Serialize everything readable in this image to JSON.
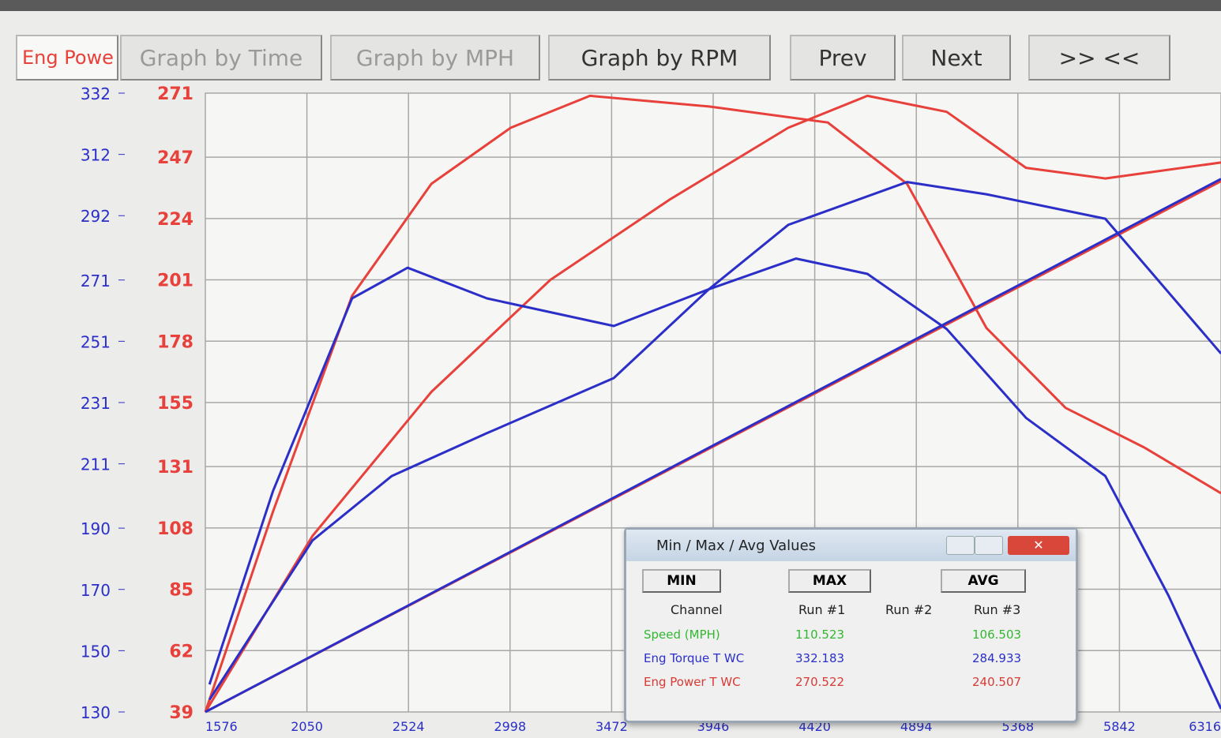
{
  "toolbar": {
    "tabs": [
      "Eng Powe",
      "Graph by Time",
      "Graph by MPH",
      "Graph by RPM",
      "Prev",
      "Next",
      ">> <<"
    ]
  },
  "chart_data": {
    "type": "line",
    "xlim": [
      1576,
      6316
    ],
    "xticks": [
      1576,
      2050,
      2524,
      2998,
      3472,
      3946,
      4420,
      4894,
      5368,
      5842,
      6316
    ],
    "ylim": [
      39,
      271
    ],
    "yticks": [
      39,
      62,
      85,
      108,
      131,
      155,
      178,
      201,
      224,
      247,
      271
    ],
    "y2lim": [
      130,
      332
    ],
    "y2ticks": [
      130,
      150,
      170,
      190,
      211,
      231,
      251,
      271,
      292,
      312,
      332
    ],
    "grid": true,
    "series": [
      {
        "color": "#e8403a",
        "x": [
          1576,
          1891,
          2261,
          2631,
          3001,
          3371,
          3926,
          4481,
          4851,
          5221,
          5591,
          5961,
          6316
        ],
        "values": [
          39,
          114,
          195,
          237,
          258,
          270,
          266,
          260,
          237,
          183,
          153,
          138,
          121
        ]
      },
      {
        "color": "#e8403a",
        "x": [
          1576,
          2076,
          2631,
          3186,
          3741,
          4296,
          4666,
          5036,
          5406,
          5776,
          6316
        ],
        "values": [
          39,
          105,
          159,
          201,
          231,
          258,
          270,
          264,
          243,
          239,
          245
        ]
      },
      {
        "color": "#e8403a",
        "x": [
          1576,
          6316
        ],
        "values": [
          39,
          238
        ]
      },
      {
        "color": "#2b2fc8",
        "axis": "y2",
        "x": [
          1595,
          1891,
          2261,
          2520,
          2890,
          3482,
          3926,
          4296,
          4851,
          5221,
          5776,
          6316
        ],
        "values": [
          139,
          202,
          265,
          275,
          265,
          256,
          268,
          289,
          303,
          299,
          291,
          247
        ]
      },
      {
        "color": "#2b2fc8",
        "axis": "y2",
        "x": [
          1595,
          2076,
          2446,
          2890,
          3482,
          3926,
          4333,
          4666,
          5036,
          5406,
          5776,
          6071,
          6316
        ],
        "values": [
          134,
          186,
          207,
          221,
          239,
          268,
          278,
          273,
          255,
          226,
          207,
          168,
          131
        ]
      },
      {
        "color": "#2b2fc8",
        "axis": "y2",
        "x": [
          1576,
          6316
        ],
        "values": [
          130,
          304
        ]
      }
    ]
  },
  "dialog": {
    "title": "Min / Max / Avg Values",
    "buttons": [
      "MIN",
      "MAX",
      "AVG"
    ],
    "columns": [
      "Channel",
      "Run #1",
      "Run #2",
      "Run #3"
    ],
    "rows": [
      [
        "Speed (MPH)",
        110.523,
        null,
        106.503
      ],
      [
        "Eng Torque T WC",
        332.183,
        null,
        284.933
      ],
      [
        "Eng Power T WC",
        270.522,
        null,
        240.507
      ]
    ]
  }
}
